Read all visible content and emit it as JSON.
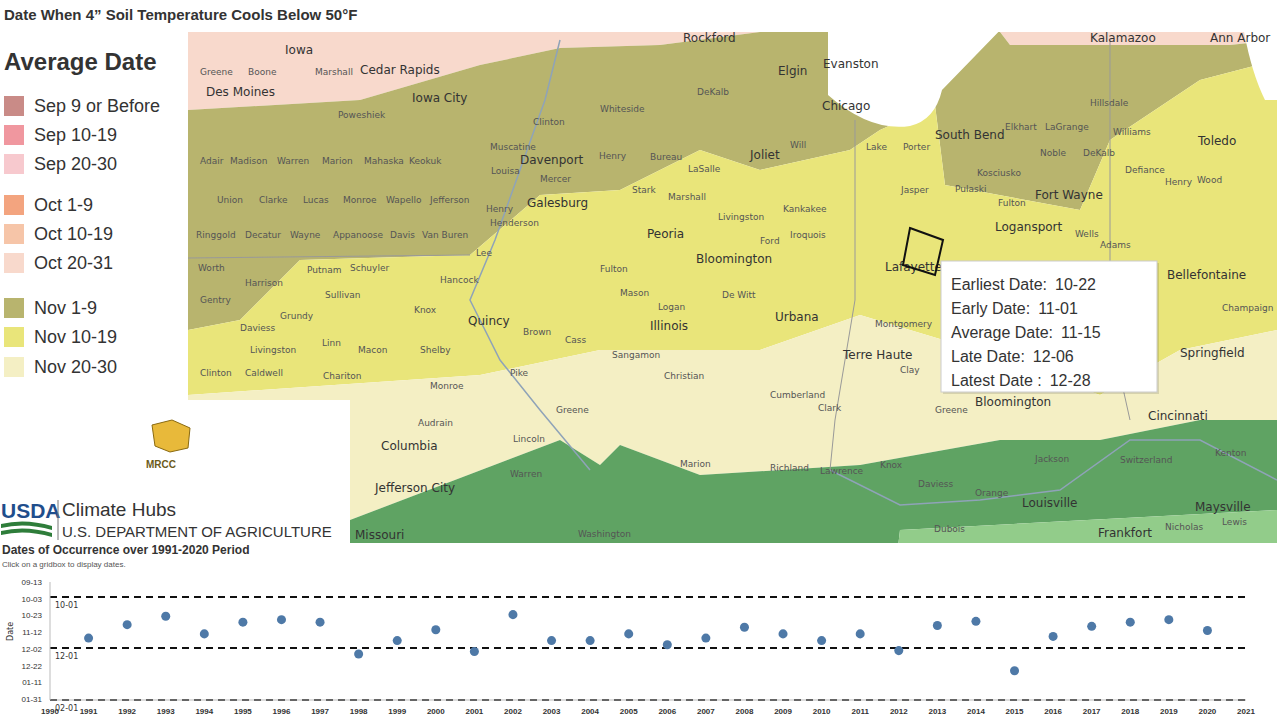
{
  "title": "Date When 4” Soil Temperature Cools Below 50°F",
  "legend": {
    "title": "Average Date",
    "items": [
      {
        "label": "Sep 9 or Before",
        "color": "#C98B87"
      },
      {
        "label": "Sep 10-19",
        "color": "#F0979F"
      },
      {
        "label": "Sep 20-30",
        "color": "#F7C9CE"
      },
      {
        "label": "Oct 1-9",
        "color": "#F3A47F"
      },
      {
        "label": "Oct 10-19",
        "color": "#F6C5A8"
      },
      {
        "label": "Oct 20-31",
        "color": "#F8D9CC"
      },
      {
        "label": "Nov 1-9",
        "color": "#B8B46E"
      },
      {
        "label": "Nov 10-19",
        "color": "#E9E57A"
      },
      {
        "label": "Nov 20-30",
        "color": "#F4EFC4"
      }
    ]
  },
  "map": {
    "place_labels": [
      "Rockford",
      "Kalamazoo",
      "Ann Arbor",
      "Iowa",
      "Cedar Rapids",
      "Elgin",
      "Evanston",
      "Des Moines",
      "Iowa City",
      "Chicago",
      "South Bend",
      "Joliet",
      "Davenport",
      "Toledo",
      "Fort Wayne",
      "Galesburg",
      "Logansport",
      "Peoria",
      "Bloomington",
      "Lafayette",
      "Bellefontaine",
      "Urbana",
      "Quincy",
      "Illinois",
      "Springfield",
      "Terre Haute",
      "Bloomington",
      "Cincinnati",
      "Columbia",
      "Jefferson City",
      "Louisville",
      "Maysville",
      "Frankfort",
      "Missouri"
    ],
    "county_labels": [
      "Greene",
      "Boone",
      "Marshall",
      "Clinton",
      "Whiteside",
      "DeKalb",
      "Poweshiek",
      "Muscatine",
      "Henry",
      "Bureau",
      "LaSalle",
      "Will",
      "Kankakee",
      "Lake",
      "Porter",
      "Elkhart",
      "LaGrange",
      "Noble",
      "DeKalb",
      "Kosciusko",
      "Hillsdale",
      "Williams",
      "Defiance",
      "Henry",
      "Wood",
      "Adair",
      "Madison",
      "Warren",
      "Marion",
      "Mahaska",
      "Keokuk",
      "Louisa",
      "Mercer",
      "Stark",
      "Marshall",
      "Union",
      "Clarke",
      "Lucas",
      "Monroe",
      "Wapello",
      "Jefferson",
      "Henry",
      "Ringgold",
      "Decatur",
      "Wayne",
      "Appanoose",
      "Davis",
      "Van Buren",
      "Lee",
      "Henderson",
      "Livingston",
      "Ford",
      "Iroquois",
      "Jasper",
      "Pulaski",
      "Fulton",
      "Wells",
      "Adams",
      "Worth",
      "Harrison",
      "Putnam",
      "Schuyler",
      "Hancock",
      "Fulton",
      "Mason",
      "Logan",
      "De Witt",
      "Montgomery",
      "Gentry",
      "Daviess",
      "Grundy",
      "Sullivan",
      "Knox",
      "Linn",
      "Macon",
      "Shelby",
      "Brown",
      "Cass",
      "Champaign",
      "Livingston",
      "Chariton",
      "Monroe",
      "Sangamon",
      "Christian",
      "Clinton",
      "Caldwell",
      "Pike",
      "Cumberland",
      "Clark",
      "Clay",
      "Audrain",
      "Lincoln",
      "Greene",
      "Warren",
      "Greene",
      "Jackson",
      "Switzerland",
      "Kenton",
      "Washington",
      "Marion",
      "Richland",
      "Lawrence",
      "Knox",
      "Daviess",
      "Orange",
      "Lewis",
      "Nicholas",
      "Dubois"
    ]
  },
  "tooltip": {
    "rows": [
      {
        "label": "Earliest Date:",
        "value": "10-22"
      },
      {
        "label": "Early Date:",
        "value": "11-01"
      },
      {
        "label": "Average Date:",
        "value": "11-15"
      },
      {
        "label": "Late Date:",
        "value": "12-06"
      },
      {
        "label": "Latest Date :",
        "value": "12-28"
      }
    ]
  },
  "logos": {
    "mrcc": "MRCC",
    "usda": "USDA",
    "hub": "Climate Hubs",
    "department": "U.S. DEPARTMENT OF AGRICULTURE"
  },
  "chart_data": {
    "type": "scatter",
    "title": "Dates of Occurrence over 1991-2020 Period",
    "subtitle": "Click on a gridbox to display dates.",
    "y_label": "Date",
    "x": [
      1991,
      1992,
      1993,
      1994,
      1995,
      1996,
      1997,
      1998,
      1999,
      2000,
      2001,
      2002,
      2003,
      2004,
      2005,
      2006,
      2007,
      2008,
      2009,
      2010,
      2011,
      2012,
      2013,
      2014,
      2015,
      2016,
      2017,
      2018,
      2019,
      2020
    ],
    "values": [
      323,
      307,
      297,
      318,
      304,
      301,
      304,
      342,
      326,
      313,
      339,
      295,
      326,
      326,
      318,
      331,
      323,
      310,
      318,
      326,
      318,
      338,
      308,
      303,
      362,
      321,
      309,
      304,
      301,
      314
    ],
    "color": "#4E79A7",
    "marker": "circle",
    "grid": false,
    "xlim": [
      1990,
      2021
    ],
    "xticks": [
      1990,
      1991,
      1992,
      1993,
      1994,
      1995,
      1996,
      1997,
      1998,
      1999,
      2000,
      2001,
      2002,
      2003,
      2004,
      2005,
      2006,
      2007,
      2008,
      2009,
      2010,
      2011,
      2012,
      2013,
      2014,
      2015,
      2016,
      2017,
      2018,
      2019,
      2020,
      2021
    ],
    "ylim": [
      256,
      397
    ],
    "yticks": [
      {
        "value": 256,
        "label": "09-13"
      },
      {
        "value": 276,
        "label": "10-03"
      },
      {
        "value": 296,
        "label": "10-23"
      },
      {
        "value": 316,
        "label": "11-12"
      },
      {
        "value": 336,
        "label": "12-02"
      },
      {
        "value": 356,
        "label": "12-22"
      },
      {
        "value": 376,
        "label": "01-11"
      },
      {
        "value": 396,
        "label": "01-31"
      }
    ],
    "reference_lines": [
      {
        "value": 274,
        "label": "10-01"
      },
      {
        "value": 335,
        "label": "12-01"
      },
      {
        "value": 397,
        "label": "02-01"
      }
    ]
  }
}
